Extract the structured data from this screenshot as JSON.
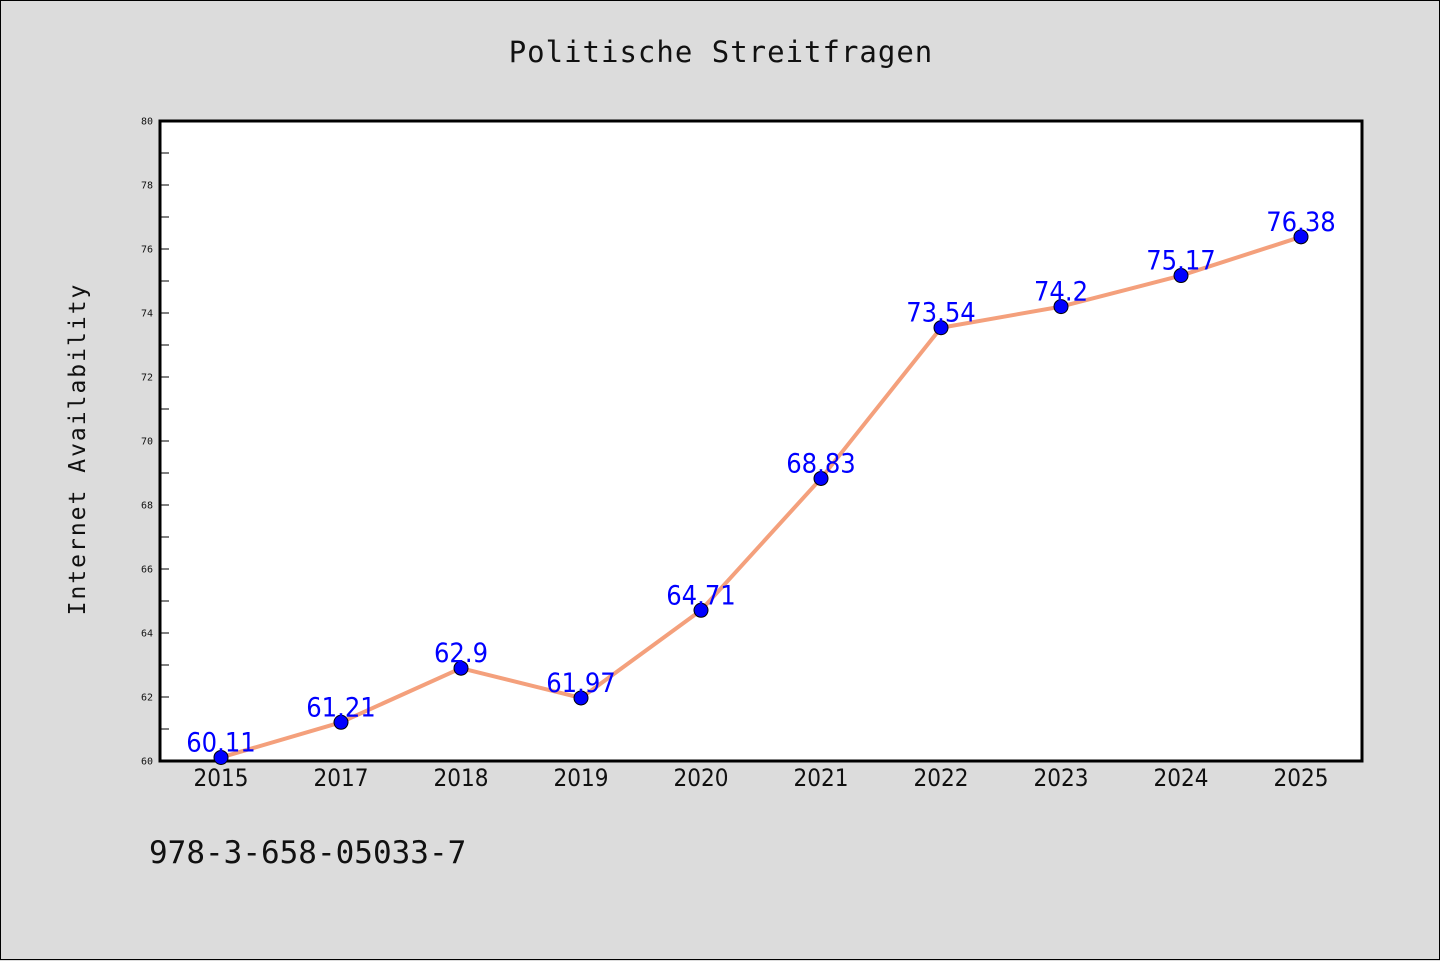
{
  "chart_data": {
    "type": "line",
    "title": "Politische Streitfragen",
    "xlabel": "",
    "ylabel": "Internet Availability",
    "x": [
      "2015",
      "2017",
      "2018",
      "2019",
      "2020",
      "2021",
      "2022",
      "2023",
      "2024",
      "2025"
    ],
    "series": [
      {
        "values": [
          60.11,
          61.21,
          62.9,
          61.97,
          64.71,
          68.83,
          73.54,
          74.2,
          75.17,
          76.38
        ],
        "line_color": "#f4a07c",
        "marker_color": "#0000ff"
      }
    ],
    "data_labels": [
      "60.11",
      "61.21",
      "62.9",
      "61.97",
      "64.71",
      "68.83",
      "73.54",
      "74.2",
      "75.17",
      "76.38"
    ],
    "ylim": [
      60,
      80
    ],
    "yticks": [
      "60",
      "62",
      "64",
      "66",
      "68",
      "70",
      "72",
      "74",
      "76",
      "78",
      "80"
    ],
    "grid": false,
    "legend": "none"
  },
  "footer": {
    "code": "978-3-658-05033-7"
  }
}
